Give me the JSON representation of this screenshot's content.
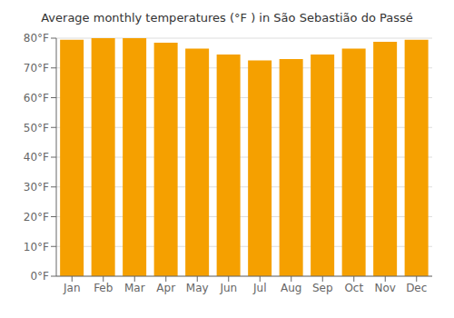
{
  "chart_data": {
    "type": "bar",
    "title": "Average monthly temperatures (°F ) in São Sebastião do Passé",
    "categories": [
      "Jan",
      "Feb",
      "Mar",
      "Apr",
      "May",
      "Jun",
      "Jul",
      "Aug",
      "Sep",
      "Oct",
      "Nov",
      "Dec"
    ],
    "values": [
      79.5,
      80.0,
      80.0,
      78.5,
      76.5,
      74.5,
      72.5,
      73.0,
      74.5,
      76.5,
      78.8,
      79.5
    ],
    "color": "#F5A000",
    "ylim": [
      0,
      80
    ],
    "yticks": [
      {
        "value": 0,
        "label": "0°F"
      },
      {
        "value": 10,
        "label": "10°F"
      },
      {
        "value": 20,
        "label": "20°F"
      },
      {
        "value": 30,
        "label": "30°F"
      },
      {
        "value": 40,
        "label": "40°F"
      },
      {
        "value": 50,
        "label": "50°F"
      },
      {
        "value": 60,
        "label": "60°F"
      },
      {
        "value": 70,
        "label": "70°F"
      },
      {
        "value": 80,
        "label": "80°F"
      }
    ],
    "grid": true
  }
}
